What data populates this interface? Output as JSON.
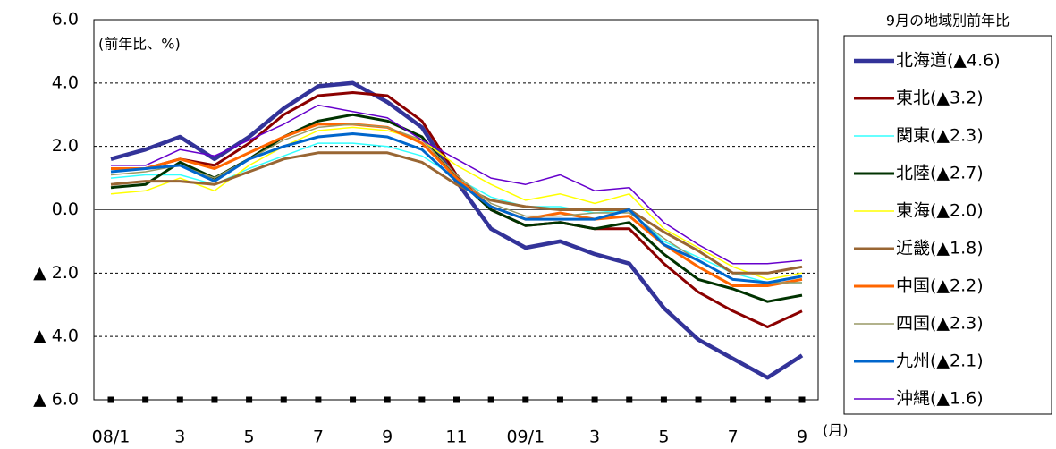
{
  "chart_data": {
    "type": "line",
    "annotation": "(前年比、%)",
    "legend_title": "9月の地域別前年比",
    "x_unit": "(月)",
    "categories": [
      "08/1",
      null,
      "3",
      null,
      "5",
      null,
      "7",
      null,
      "9",
      null,
      "11",
      null,
      "09/1",
      null,
      "3",
      null,
      "5",
      null,
      "7",
      null,
      "9"
    ],
    "ylim": [
      -6,
      6
    ],
    "yticks": [
      {
        "value": 6,
        "label": "6.0"
      },
      {
        "value": 4,
        "label": "4.0"
      },
      {
        "value": 2,
        "label": "2.0"
      },
      {
        "value": 0,
        "label": "0.0"
      },
      {
        "value": -2,
        "label": "▲ 2.0"
      },
      {
        "value": -4,
        "label": "▲ 4.0"
      },
      {
        "value": -6,
        "label": "▲ 6.0"
      }
    ],
    "grid": true,
    "series": [
      {
        "name": "北海道(▲4.6)",
        "color": "#333399",
        "values": [
          1.6,
          1.9,
          2.3,
          1.6,
          2.3,
          3.2,
          3.9,
          4.0,
          3.4,
          2.6,
          0.9,
          -0.6,
          -1.2,
          -1.0,
          -1.4,
          -1.7,
          -3.1,
          -4.1,
          -4.7,
          -5.3,
          -4.6
        ]
      },
      {
        "name": "東北(▲3.2)",
        "color": "#8b0000",
        "values": [
          1.3,
          1.3,
          1.6,
          1.4,
          2.1,
          3.0,
          3.6,
          3.7,
          3.6,
          2.8,
          1.1,
          0.0,
          -0.5,
          -0.4,
          -0.6,
          -0.6,
          -1.7,
          -2.6,
          -3.2,
          -3.7,
          -3.2
        ]
      },
      {
        "name": "関東(▲2.3)",
        "color": "#33ffff",
        "values": [
          1.0,
          1.1,
          1.1,
          0.8,
          1.3,
          1.7,
          2.1,
          2.1,
          2.0,
          1.7,
          1.0,
          0.4,
          0.1,
          0.1,
          -0.1,
          0.0,
          -1.0,
          -1.5,
          -2.0,
          -2.3,
          -2.3
        ]
      },
      {
        "name": "北陸(▲2.7)",
        "color": "#003300",
        "values": [
          0.7,
          0.8,
          1.5,
          1.0,
          1.6,
          2.3,
          2.8,
          3.0,
          2.8,
          2.3,
          1.0,
          0.0,
          -0.5,
          -0.4,
          -0.6,
          -0.4,
          -1.4,
          -2.2,
          -2.5,
          -2.9,
          -2.7
        ]
      },
      {
        "name": "東海(▲2.0)",
        "color": "#ffff00",
        "values": [
          0.5,
          0.6,
          1.0,
          0.6,
          1.4,
          2.0,
          2.5,
          2.6,
          2.5,
          2.2,
          1.4,
          0.8,
          0.3,
          0.5,
          0.2,
          0.5,
          -0.6,
          -1.2,
          -1.8,
          -2.2,
          -2.0
        ]
      },
      {
        "name": "近畿(▲1.8)",
        "color": "#996633",
        "values": [
          0.8,
          0.9,
          0.9,
          0.8,
          1.2,
          1.6,
          1.8,
          1.8,
          1.8,
          1.5,
          0.8,
          0.3,
          0.1,
          0.0,
          0.0,
          0.0,
          -0.7,
          -1.3,
          -2.0,
          -2.0,
          -1.8
        ]
      },
      {
        "name": "中国(▲2.2)",
        "color": "#ff6600",
        "values": [
          1.3,
          1.3,
          1.6,
          1.3,
          1.8,
          2.3,
          2.7,
          2.7,
          2.6,
          2.1,
          1.0,
          0.1,
          -0.3,
          -0.1,
          -0.3,
          -0.2,
          -1.1,
          -1.8,
          -2.4,
          -2.4,
          -2.2
        ]
      },
      {
        "name": "四国(▲2.3)",
        "color": "#999966",
        "values": [
          1.1,
          1.2,
          1.4,
          1.0,
          1.6,
          2.2,
          2.6,
          2.7,
          2.6,
          2.2,
          1.1,
          0.2,
          -0.2,
          -0.2,
          -0.1,
          -0.1,
          -0.9,
          -1.6,
          -2.2,
          -2.3,
          -2.3
        ]
      },
      {
        "name": "九州(▲2.1)",
        "color": "#0066cc",
        "values": [
          1.2,
          1.3,
          1.4,
          0.9,
          1.6,
          2.0,
          2.3,
          2.4,
          2.3,
          1.9,
          0.9,
          0.1,
          -0.3,
          -0.3,
          -0.3,
          0.0,
          -1.1,
          -1.6,
          -2.2,
          -2.3,
          -2.1
        ]
      },
      {
        "name": "沖縄(▲1.6)",
        "color": "#6600cc",
        "values": [
          1.4,
          1.4,
          1.9,
          1.7,
          2.2,
          2.7,
          3.3,
          3.1,
          2.9,
          2.2,
          1.6,
          1.0,
          0.8,
          1.1,
          0.6,
          0.7,
          -0.4,
          -1.1,
          -1.7,
          -1.7,
          -1.6
        ]
      }
    ]
  }
}
